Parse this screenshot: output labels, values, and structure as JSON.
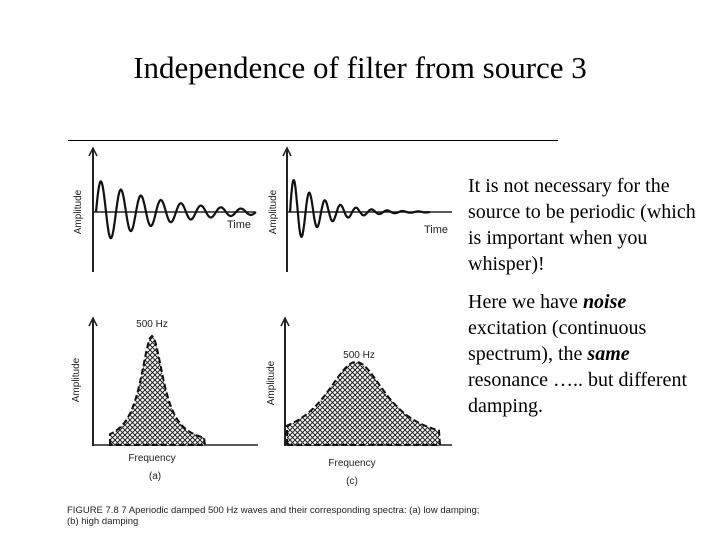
{
  "title": "Independence of filter from source 3",
  "paragraphs": [
    [
      "It is not necessary for the source to be periodic (which is important when you whisper)!"
    ],
    [
      "Here we have ",
      "noise",
      " excitation (continuous spectrum), the ",
      "same",
      " resonance ….. but different damping."
    ]
  ],
  "figure": {
    "panels": [
      {
        "y_label": "Amplitude",
        "x_label": "Time"
      },
      {
        "y_label": "Amplitude",
        "x_label": "Time"
      },
      {
        "y_label": "Amplitude",
        "x_label": "Frequency",
        "peak_label": "500 Hz",
        "panel_label": "(a)"
      },
      {
        "y_label": "Amplitude",
        "x_label": "Frequency",
        "peak_label": "500 Hz",
        "panel_label": "(c)"
      }
    ],
    "caption": [
      "FIGURE 7.8 7   Aperiodic damped 500 Hz waves and their corresponding spectra: (a) low damping;",
      "(b) high damping"
    ]
  }
}
